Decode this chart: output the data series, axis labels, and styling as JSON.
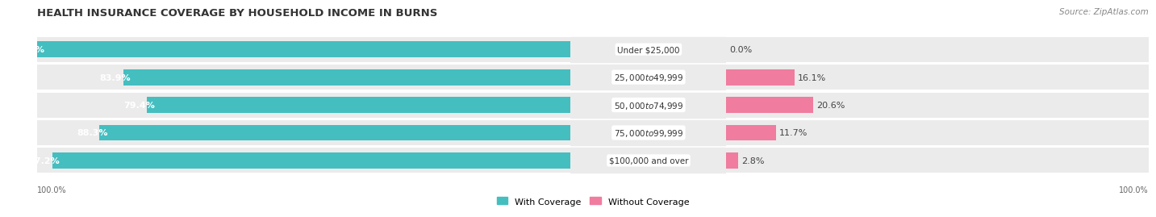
{
  "title": "HEALTH INSURANCE COVERAGE BY HOUSEHOLD INCOME IN BURNS",
  "source": "Source: ZipAtlas.com",
  "categories": [
    "Under $25,000",
    "$25,000 to $49,999",
    "$50,000 to $74,999",
    "$75,000 to $99,999",
    "$100,000 and over"
  ],
  "with_coverage": [
    100.0,
    83.9,
    79.4,
    88.3,
    97.2
  ],
  "without_coverage": [
    0.0,
    16.1,
    20.6,
    11.7,
    2.8
  ],
  "color_with": "#45bec0",
  "color_without": "#f07ca0",
  "row_bg_color": "#ebebeb",
  "bar_height": 0.58,
  "legend_labels": [
    "With Coverage",
    "Without Coverage"
  ],
  "title_fontsize": 9.5,
  "label_fontsize": 8,
  "source_fontsize": 7.5,
  "pct_label_fontsize": 8,
  "cat_label_fontsize": 7.5
}
